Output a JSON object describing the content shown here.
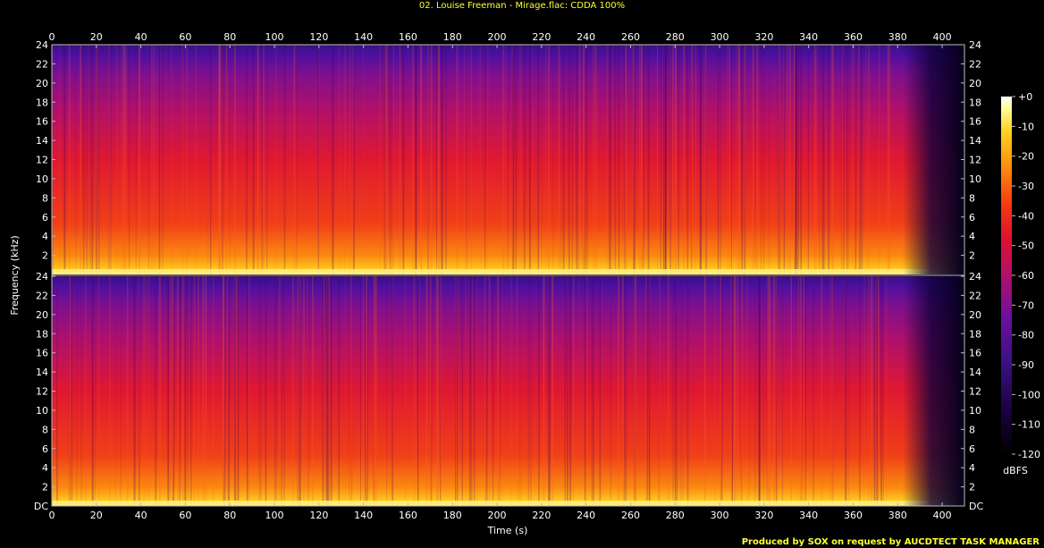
{
  "chart_data": {
    "type": "heatmap",
    "title": "02. Louise Freeman - Mirage.flac: CDDA 100%",
    "xlabel": "Time (s)",
    "ylabel": "Frequency (kHz)",
    "xlim": [
      0,
      410
    ],
    "ylim": [
      0,
      24
    ],
    "x_ticks": [
      "0",
      "20",
      "40",
      "60",
      "80",
      "100",
      "120",
      "140",
      "160",
      "180",
      "200",
      "220",
      "240",
      "260",
      "280",
      "300",
      "320",
      "340",
      "360",
      "380",
      "400"
    ],
    "y_ticks": [
      "DC",
      "2",
      "4",
      "6",
      "8",
      "10",
      "12",
      "14",
      "16",
      "18",
      "20",
      "22",
      "24"
    ],
    "channels": [
      "channel-1",
      "channel-2"
    ],
    "colorbar": {
      "label": "dBFS",
      "ticks": [
        "+0",
        "-10",
        "-20",
        "-30",
        "-40",
        "-50",
        "-60",
        "-70",
        "-80",
        "-90",
        "-100",
        "-110",
        "-120"
      ],
      "range": [
        -120,
        0
      ]
    },
    "colors": {
      "title": "#ffff33",
      "axis": "#ffffff",
      "background": "#000000",
      "colormap": [
        "#000000",
        "#1a0040",
        "#3a1080",
        "#6a10a0",
        "#b0106a",
        "#e01030",
        "#f53a10",
        "#fb8a10",
        "#ffd020",
        "#ffffa0",
        "#ffffff"
      ]
    }
  },
  "footer": {
    "credit": "Produced by SOX on request by AUCDTECT TASK MANAGER"
  }
}
